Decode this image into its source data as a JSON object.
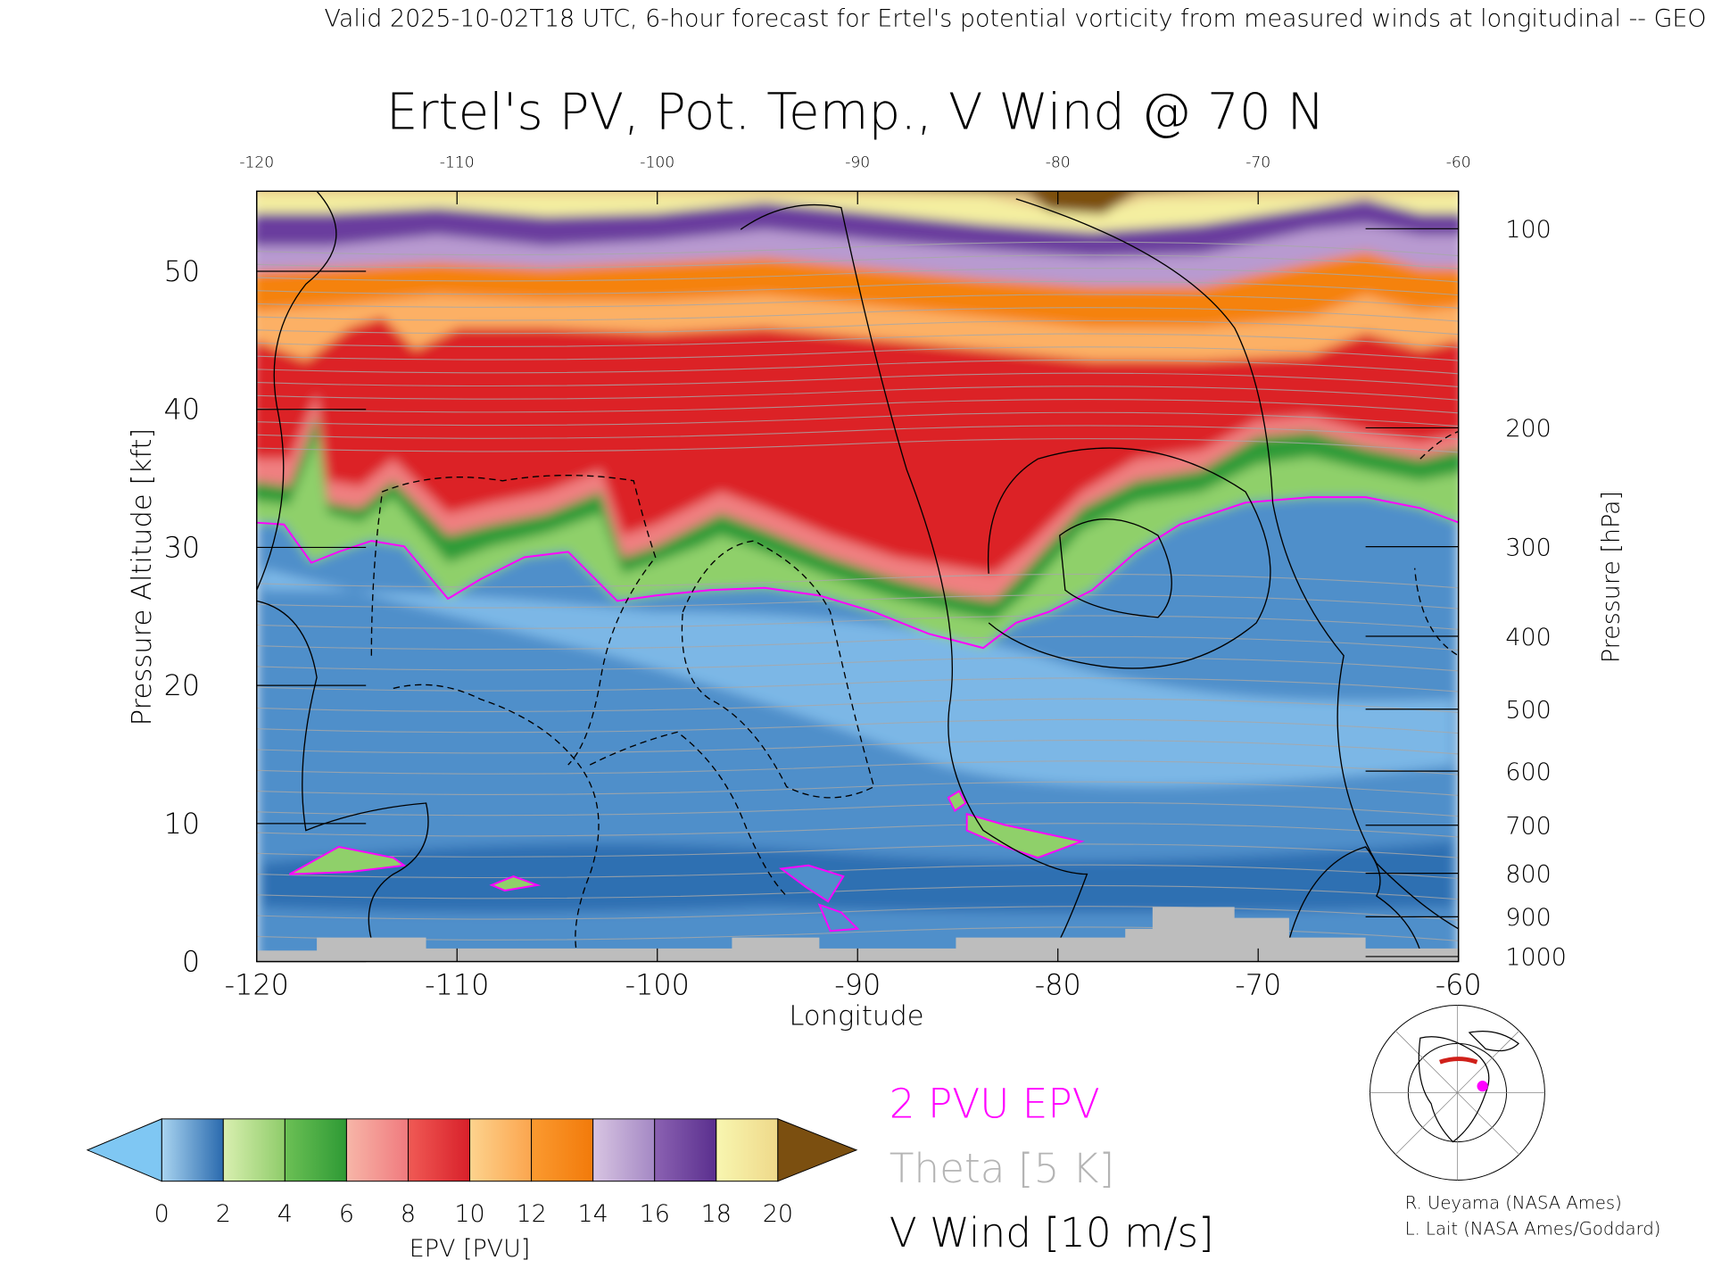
{
  "chart_data": {
    "type": "cross-section",
    "header": "Valid 2025-10-02T18 UTC, 6-hour forecast for Ertel's potential vorticity from measured winds at longitudinal -- GEO",
    "title": "Ertel's PV, Pot. Temp., V Wind @ 70 N",
    "xlabel": "Longitude",
    "ylabel": "Pressure Altitude [kft]",
    "y2label": "Pressure [hPa]",
    "xlim": [
      -120,
      -60
    ],
    "xticks": [
      -120,
      -110,
      -100,
      -90,
      -80,
      -70,
      -60
    ],
    "ylim": [
      0,
      55.8
    ],
    "yticks": [
      0,
      10,
      20,
      30,
      40,
      50
    ],
    "y2lim": [
      1013.25,
      87.7
    ],
    "y2ticks": [
      100,
      200,
      300,
      400,
      500,
      600,
      700,
      800,
      900,
      1000
    ],
    "colorbar": {
      "label": "EPV [PVU]",
      "ticks": [
        0,
        2,
        4,
        6,
        8,
        10,
        12,
        14,
        16,
        18,
        20
      ],
      "colors": [
        [
          "#a9d4f0",
          "#2a6aae"
        ],
        [
          "#d9efb0",
          "#8fcc6a"
        ],
        [
          "#6cc055",
          "#2e9a35"
        ],
        [
          "#f7b6a8",
          "#f07a7e"
        ],
        [
          "#f05a55",
          "#d8202a"
        ],
        [
          "#fdd38e",
          "#fba54e"
        ],
        [
          "#fb9a30",
          "#f27a0a"
        ],
        [
          "#d8c5e2",
          "#a488c4"
        ],
        [
          "#8b62b2",
          "#5a2f8e"
        ],
        [
          "#f8f6b0",
          "#efd98a"
        ]
      ],
      "under_color": "#7fc7f3",
      "over_color": "#7b4f10"
    },
    "legend": [
      {
        "name": "2 PVU EPV",
        "color": "#ff00ff"
      },
      {
        "name": "Theta [5 K]",
        "color": "#b4b4b4"
      },
      {
        "name": "V Wind [10 m/s]",
        "color": "#000000"
      }
    ],
    "credits": [
      "R. Ueyama (NASA Ames)",
      "L. Lait (NASA Ames/Goddard)"
    ]
  }
}
